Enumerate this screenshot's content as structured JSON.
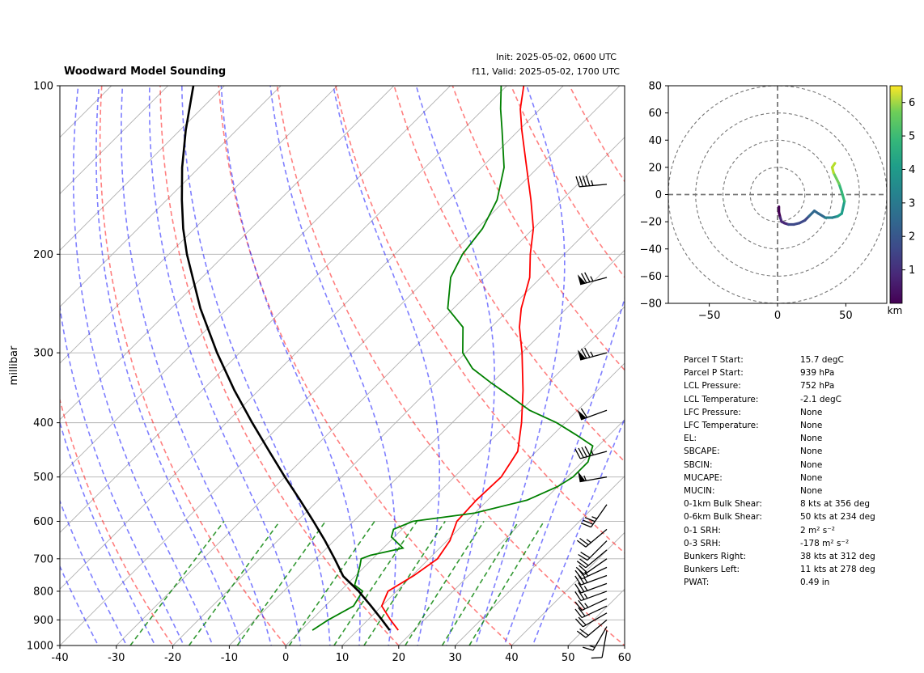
{
  "title": "Woodward Model Sounding",
  "init_text": "Init: 2025-05-02, 0600 UTC",
  "valid_text": "f11, Valid: 2025-05-02, 1700 UTC",
  "chart_data": [
    {
      "type": "skew-t",
      "ylabel": "millibar",
      "xlim": [
        -40,
        60
      ],
      "ylim": [
        1000,
        100
      ],
      "x_ticks": [
        -40,
        -30,
        -20,
        -10,
        0,
        10,
        20,
        30,
        40,
        50,
        60
      ],
      "y_ticks": [
        100,
        200,
        300,
        400,
        500,
        600,
        700,
        800,
        900,
        1000
      ],
      "y_scale": "log",
      "temperature": {
        "color": "#ff0000",
        "pressure": [
          939,
          900,
          850,
          800,
          750,
          700,
          650,
          600,
          550,
          500,
          450,
          400,
          350,
          300,
          270,
          250,
          220,
          200,
          180,
          160,
          140,
          120,
          110,
          100
        ],
        "values": [
          17.2,
          14.0,
          10.0,
          8.5,
          10.3,
          11.5,
          10.5,
          8.3,
          8.0,
          8.3,
          6.7,
          2.3,
          -3.2,
          -10.0,
          -15.0,
          -18.0,
          -22.0,
          -26.0,
          -30.0,
          -35.5,
          -42.0,
          -49.5,
          -53.5,
          -57.0
        ]
      },
      "dewpoint": {
        "color": "#008000",
        "pressure": [
          939,
          900,
          850,
          800,
          780,
          750,
          720,
          700,
          690,
          670,
          640,
          620,
          600,
          580,
          550,
          520,
          500,
          470,
          440,
          420,
          400,
          380,
          360,
          340,
          320,
          300,
          270,
          250,
          220,
          200,
          180,
          160,
          140,
          120,
          110,
          100
        ],
        "values": [
          2.0,
          3.0,
          5.0,
          4.0,
          1.5,
          0.3,
          -1.0,
          -2.0,
          -1.0,
          3.5,
          -0.5,
          -1.5,
          0.5,
          10.0,
          17.0,
          20.0,
          21.0,
          21.0,
          19.0,
          14.0,
          8.5,
          1.5,
          -4.0,
          -10.0,
          -16.0,
          -20.5,
          -25.0,
          -31.0,
          -36.0,
          -38.0,
          -39.0,
          -41.5,
          -46.0,
          -53.0,
          -57.0,
          -61.0
        ]
      },
      "parcel": {
        "color": "#000000",
        "pressure": [
          939,
          900,
          850,
          800,
          752,
          700,
          650,
          600,
          550,
          500,
          450,
          400,
          350,
          300,
          250,
          200,
          180,
          160,
          140,
          120,
          100
        ],
        "values": [
          15.7,
          12.5,
          8.1,
          3.3,
          -2.1,
          -6.7,
          -11.6,
          -17.1,
          -23.2,
          -30.0,
          -37.3,
          -45.4,
          -54.3,
          -64.0,
          -74.8,
          -86.8,
          -92.0,
          -97.3,
          -103.0,
          -109.0,
          -115.5
        ]
      },
      "wind_barbs": [
        {
          "pressure": 940,
          "speed_kt": 10,
          "direction_deg": 190
        },
        {
          "pressure": 925,
          "speed_kt": 15,
          "direction_deg": 210
        },
        {
          "pressure": 900,
          "speed_kt": 20,
          "direction_deg": 230
        },
        {
          "pressure": 875,
          "speed_kt": 20,
          "direction_deg": 240
        },
        {
          "pressure": 850,
          "speed_kt": 20,
          "direction_deg": 245
        },
        {
          "pressure": 825,
          "speed_kt": 25,
          "direction_deg": 245
        },
        {
          "pressure": 800,
          "speed_kt": 25,
          "direction_deg": 250
        },
        {
          "pressure": 775,
          "speed_kt": 25,
          "direction_deg": 250
        },
        {
          "pressure": 750,
          "speed_kt": 25,
          "direction_deg": 250
        },
        {
          "pressure": 725,
          "speed_kt": 25,
          "direction_deg": 245
        },
        {
          "pressure": 700,
          "speed_kt": 20,
          "direction_deg": 235
        },
        {
          "pressure": 675,
          "speed_kt": 20,
          "direction_deg": 230
        },
        {
          "pressure": 650,
          "speed_kt": 20,
          "direction_deg": 225
        },
        {
          "pressure": 620,
          "speed_kt": 25,
          "direction_deg": 230
        },
        {
          "pressure": 560,
          "speed_kt": 35,
          "direction_deg": 215
        },
        {
          "pressure": 500,
          "speed_kt": 55,
          "direction_deg": 260
        },
        {
          "pressure": 450,
          "speed_kt": 45,
          "direction_deg": 255
        },
        {
          "pressure": 380,
          "speed_kt": 60,
          "direction_deg": 250
        },
        {
          "pressure": 300,
          "speed_kt": 75,
          "direction_deg": 255
        },
        {
          "pressure": 220,
          "speed_kt": 75,
          "direction_deg": 255
        },
        {
          "pressure": 150,
          "speed_kt": 45,
          "direction_deg": 265
        }
      ]
    },
    {
      "type": "hodograph",
      "xlim": [
        -80,
        80
      ],
      "ylim": [
        -80,
        80
      ],
      "x_ticks": [
        -50,
        0,
        50
      ],
      "y_ticks": [
        -80,
        -60,
        -40,
        -20,
        0,
        20,
        40,
        60,
        80
      ],
      "rings": [
        20,
        40,
        60,
        80
      ],
      "colorbar": {
        "label": "km",
        "min": 0,
        "max": 6.5,
        "ticks": [
          1,
          2,
          3,
          4,
          5,
          6
        ],
        "colormap": "viridis"
      },
      "trace": {
        "u": [
          1,
          1,
          2,
          3,
          5,
          8,
          12,
          16,
          20,
          23,
          27,
          30,
          35,
          40,
          44,
          47,
          49,
          47,
          45,
          43,
          41,
          40,
          42
        ],
        "v": [
          -9,
          -13,
          -17,
          -20,
          -21,
          -22,
          -22,
          -21,
          -19,
          -16,
          -12,
          -14,
          -17,
          -17,
          -16,
          -14,
          -5,
          2,
          8,
          12,
          16,
          20,
          23
        ],
        "height_km": [
          0.0,
          0.2,
          0.4,
          0.6,
          0.8,
          1.0,
          1.2,
          1.4,
          1.6,
          1.8,
          2.0,
          2.3,
          2.6,
          2.9,
          3.2,
          3.5,
          3.8,
          4.2,
          4.6,
          5.0,
          5.4,
          5.8,
          6.2
        ]
      }
    }
  ],
  "stats": [
    {
      "label": "Parcel T Start:",
      "value": "15.7 degC"
    },
    {
      "label": "Parcel P Start:",
      "value": "939 hPa"
    },
    {
      "label": "LCL Pressure:",
      "value": "752 hPa"
    },
    {
      "label": "LCL Temperature:",
      "value": "-2.1 degC"
    },
    {
      "label": "LFC Pressure:",
      "value": "None"
    },
    {
      "label": "LFC Temperature:",
      "value": "None"
    },
    {
      "label": "EL:",
      "value": "None"
    },
    {
      "label": "SBCAPE:",
      "value": "None"
    },
    {
      "label": "SBCIN:",
      "value": "None"
    },
    {
      "label": "MUCAPE:",
      "value": "None"
    },
    {
      "label": "MUCIN:",
      "value": "None"
    },
    {
      "label": "0-1km Bulk Shear:",
      "value": "8 kts at 356 deg"
    },
    {
      "label": "0-6km Bulk Shear:",
      "value": "50 kts at 234 deg"
    },
    {
      "label": "0-1 SRH:",
      "value": "2 m² s⁻²"
    },
    {
      "label": "0-3 SRH:",
      "value": "-178 m² s⁻²"
    },
    {
      "label": "Bunkers Right:",
      "value": "38 kts at 312 deg"
    },
    {
      "label": "Bunkers Left:",
      "value": "11 kts at 278 deg"
    },
    {
      "label": "PWAT:",
      "value": "0.49 in"
    }
  ]
}
